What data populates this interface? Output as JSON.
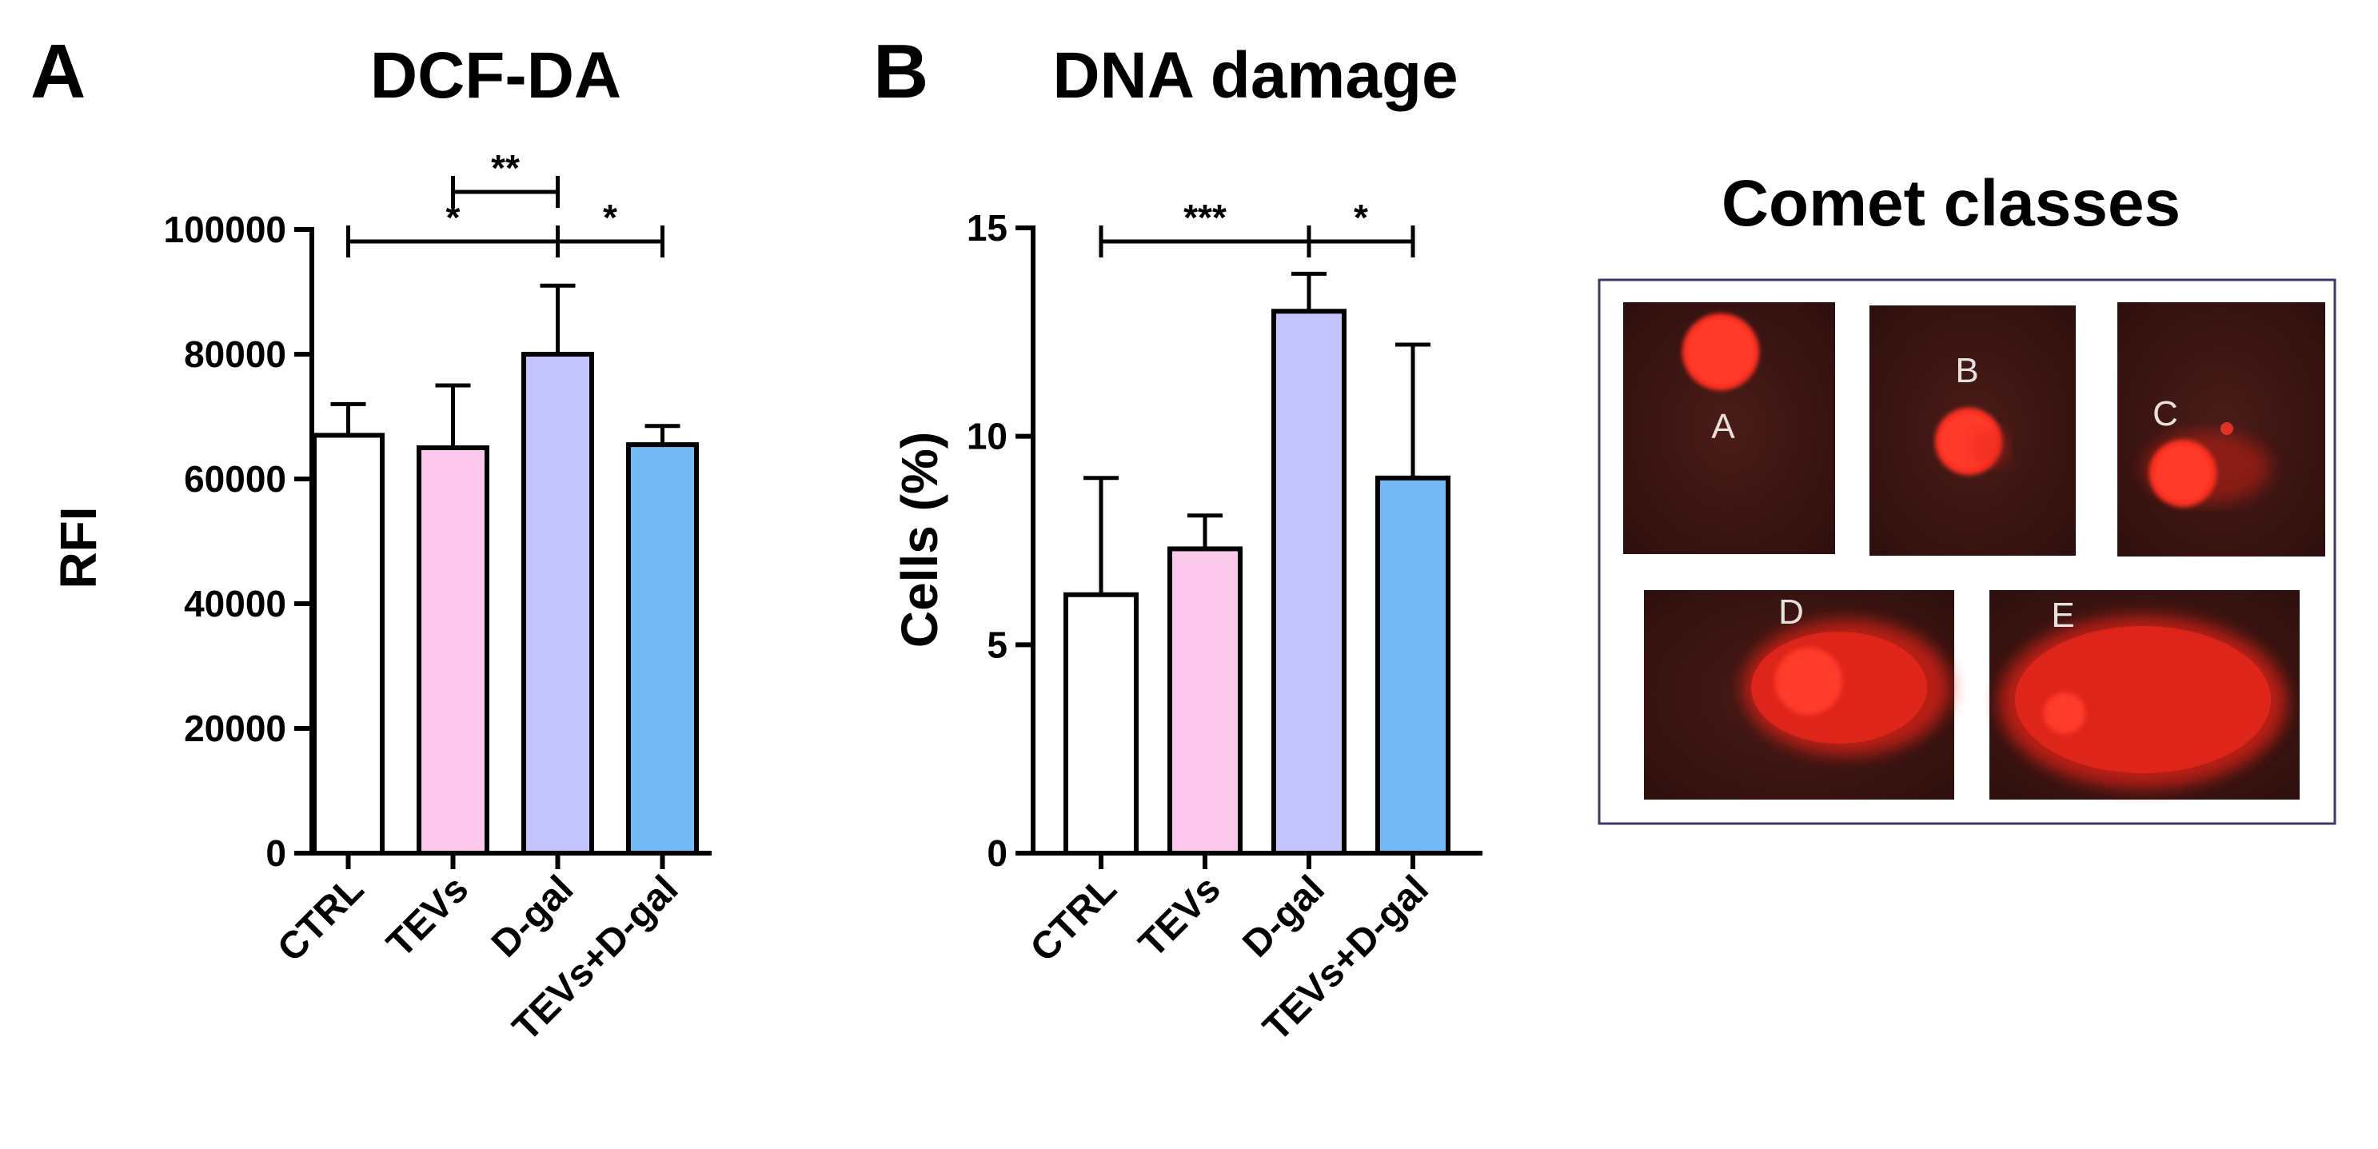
{
  "chart_data": [
    {
      "panel": "A",
      "type": "bar",
      "title": "DCF-DA",
      "xlabel": "",
      "ylabel": "RFI",
      "ylim": [
        0,
        100000
      ],
      "yticks": [
        0,
        20000,
        40000,
        60000,
        80000,
        100000
      ],
      "categories": [
        "CTRL",
        "TEVs",
        "D-gal",
        "TEVs+D-gal"
      ],
      "values": [
        67000,
        65000,
        80000,
        65500
      ],
      "errors": [
        5000,
        10000,
        11000,
        3000
      ],
      "colors": [
        "#ffffff",
        "#fbc8ec",
        "#c4c4ff",
        "#73baf7"
      ],
      "significance": [
        {
          "from": 1,
          "to": 2,
          "label": "**",
          "level": 2
        },
        {
          "from": 0,
          "to": 2,
          "label": "*",
          "level": 1
        },
        {
          "from": 2,
          "to": 3,
          "label": "*",
          "level": 1
        }
      ]
    },
    {
      "panel": "B",
      "type": "bar",
      "title": "DNA damage",
      "xlabel": "",
      "ylabel": "Cells (%)",
      "ylim": [
        0,
        15
      ],
      "yticks": [
        0,
        5,
        10,
        15
      ],
      "categories": [
        "CTRL",
        "TEVs",
        "D-gal",
        "TEVs+D-gal"
      ],
      "values": [
        6.2,
        7.3,
        13.0,
        9.0
      ],
      "errors": [
        2.8,
        0.8,
        0.9,
        3.2
      ],
      "colors": [
        "#ffffff",
        "#fbc8ec",
        "#c4c4ff",
        "#73baf7"
      ],
      "significance": [
        {
          "from": 0,
          "to": 2,
          "label": "***",
          "level": 1
        },
        {
          "from": 2,
          "to": 3,
          "label": "*",
          "level": 1
        }
      ]
    }
  ],
  "comet": {
    "title": "Comet classes",
    "classes": [
      "A",
      "B",
      "C",
      "D",
      "E"
    ]
  }
}
